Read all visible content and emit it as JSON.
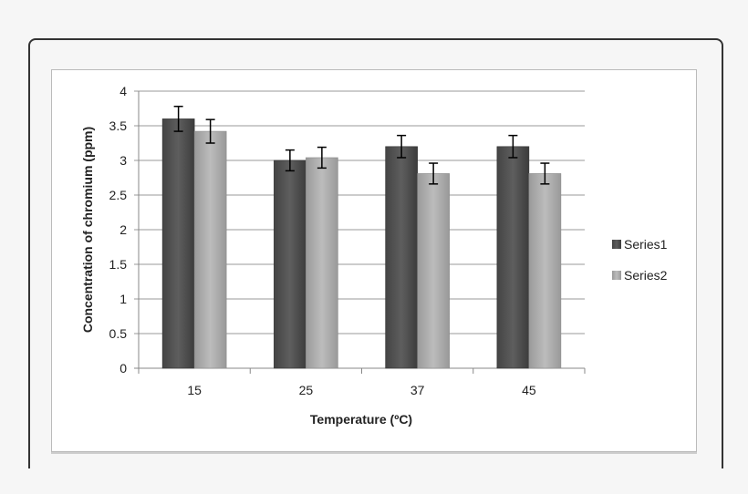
{
  "chart_data": {
    "type": "bar",
    "title": "",
    "xlabel": "Temperature (ºC)",
    "ylabel": "Concentration of chromium (ppm)",
    "categories": [
      "15",
      "25",
      "37",
      "45"
    ],
    "series": [
      {
        "name": "Series1",
        "values": [
          3.6,
          3.0,
          3.2,
          3.2
        ],
        "errors": [
          0.18,
          0.15,
          0.16,
          0.16
        ],
        "color": "#555555"
      },
      {
        "name": "Series2",
        "values": [
          3.42,
          3.04,
          2.81,
          2.81
        ],
        "errors": [
          0.17,
          0.15,
          0.15,
          0.15
        ],
        "color": "#b4b4b4"
      }
    ],
    "ylim": [
      0,
      4
    ],
    "yticks": [
      "0",
      "0.5",
      "1",
      "1.5",
      "2",
      "2.5",
      "3",
      "3.5",
      "4"
    ],
    "grid": true,
    "legend": "right"
  }
}
